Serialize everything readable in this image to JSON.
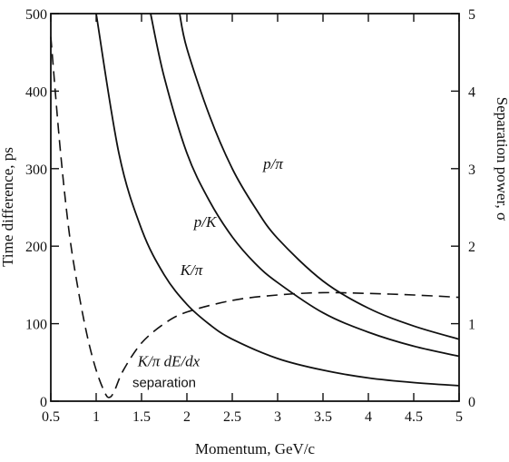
{
  "chart_data": {
    "type": "line",
    "xlabel": "Momentum, GeV/c",
    "ylabel_left": "Time difference, ps",
    "ylabel_right": "Separation power, σ",
    "xlim": [
      0.5,
      5
    ],
    "ylim_left": [
      0,
      500
    ],
    "ylim_right": [
      0,
      5
    ],
    "x_ticks": [
      "0.5",
      "1",
      "1.5",
      "2",
      "2.5",
      "3",
      "3.5",
      "4",
      "4.5",
      "5"
    ],
    "y_left_ticks": [
      "0",
      "100",
      "200",
      "300",
      "400",
      "500"
    ],
    "y_right_ticks": [
      "0",
      "1",
      "2",
      "3",
      "4",
      "5"
    ],
    "grid": false,
    "series": [
      {
        "name": "p/π",
        "axis": "left",
        "style": "solid",
        "x": [
          1.92,
          2.0,
          2.25,
          2.5,
          2.75,
          3.0,
          3.5,
          4.0,
          4.5,
          5.0
        ],
        "y": [
          500,
          455,
          368,
          300,
          250,
          210,
          155,
          120,
          97,
          80
        ]
      },
      {
        "name": "p/K",
        "axis": "left",
        "style": "solid",
        "x": [
          1.6,
          1.75,
          2.0,
          2.25,
          2.5,
          2.75,
          3.0,
          3.5,
          4.0,
          4.5,
          5.0
        ],
        "y": [
          500,
          418,
          320,
          258,
          212,
          178,
          153,
          114,
          89,
          71,
          58
        ]
      },
      {
        "name": "K/π",
        "axis": "left",
        "style": "solid",
        "x": [
          1.0,
          1.25,
          1.5,
          1.75,
          2.0,
          2.25,
          2.5,
          3.0,
          3.5,
          4.0,
          4.5,
          5.0
        ],
        "y": [
          500,
          320,
          222,
          163,
          125,
          99,
          80,
          55,
          40,
          30,
          24,
          20
        ]
      },
      {
        "name": "K/π dE/dx separation",
        "axis": "right",
        "style": "dashed",
        "x": [
          0.5,
          0.6,
          0.7,
          0.8,
          0.9,
          1.0,
          1.1,
          1.15,
          1.2,
          1.3,
          1.5,
          1.75,
          2.0,
          2.5,
          3.0,
          3.5,
          4.0,
          4.5,
          5.0
        ],
        "y": [
          4.7,
          3.3,
          2.2,
          1.45,
          0.85,
          0.4,
          0.1,
          0.05,
          0.13,
          0.4,
          0.75,
          1.0,
          1.15,
          1.3,
          1.37,
          1.4,
          1.39,
          1.37,
          1.34
        ]
      }
    ],
    "annotations": [
      {
        "text": "p/π",
        "x": 2.95,
        "y": 300
      },
      {
        "text": "p/K",
        "x": 2.2,
        "y": 225
      },
      {
        "text": "K/π",
        "x": 2.05,
        "y": 163
      },
      {
        "text": "K/π dE/dx",
        "x": 1.8,
        "y": 45
      },
      {
        "text": "separation",
        "x": 1.75,
        "y": 18
      }
    ]
  }
}
